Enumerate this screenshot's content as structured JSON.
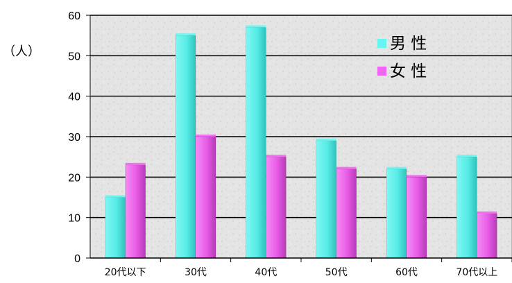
{
  "chart_data": {
    "type": "bar",
    "ylabel": "（人）",
    "ylim": [
      0,
      60
    ],
    "yticks": [
      0,
      10,
      20,
      30,
      40,
      50,
      60
    ],
    "grid": true,
    "legend_position": "top-right",
    "categories": [
      "20代以下",
      "30代",
      "40代",
      "50代",
      "60代",
      "70代以上"
    ],
    "series": [
      {
        "name": "男 性",
        "color": "#66f5f0",
        "values": [
          15,
          55,
          57,
          29,
          22,
          25
        ]
      },
      {
        "name": "女 性",
        "color": "#f066f0",
        "values": [
          23,
          30,
          25,
          22,
          20,
          11
        ]
      }
    ]
  }
}
